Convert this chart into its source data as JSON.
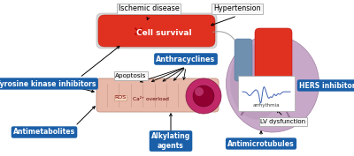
{
  "bg_color": "#ffffff",
  "blue_box_color": "#1a5fa8",
  "blue_box_text_color": "#ffffff",
  "light_box_color": "#f8f8f8",
  "light_box_border": "#888888",
  "vessel_color": "#e03020",
  "labels": {
    "ischemic": "Ischemic disease",
    "hypertension": "Hypertension",
    "cell_survival": "Cell survival",
    "anthracyclines": "Anthracyclines",
    "tyrosine": "Tyrosine kinase inhibitors",
    "antimetabolites": "Antimetabolites",
    "alkylating": "Alkylating\nagents",
    "antimicrotubules": "Antimicrotubules",
    "hers": "HERS inhibitors",
    "lv": "LV dysfunction",
    "apoptosis": "Apoptosis",
    "arrhythmia": "arrhythmia",
    "ros": "ROS",
    "ca": "Ca²⁺ overload"
  }
}
